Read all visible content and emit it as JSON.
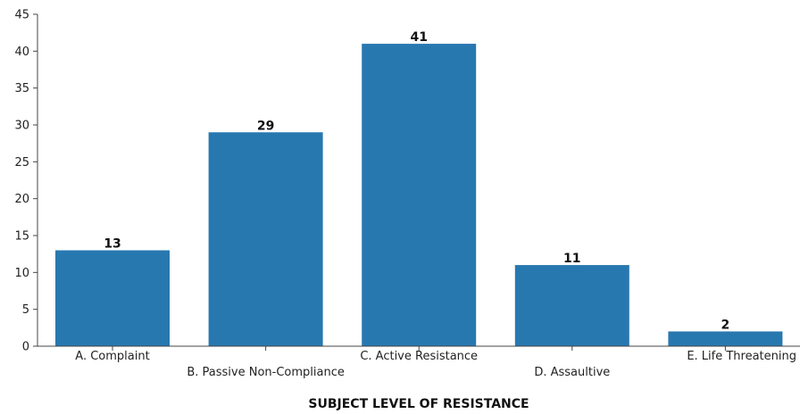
{
  "chart_data": {
    "type": "bar",
    "title": "",
    "xlabel": "SUBJECT LEVEL OF RESISTANCE",
    "ylabel": "",
    "categories": [
      "A. Complaint",
      "B. Passive Non-Compliance",
      "C. Active Resistance",
      "D. Assaultive",
      "E. Life Threatening"
    ],
    "values": [
      13,
      29,
      41,
      11,
      2
    ],
    "ylim": [
      0,
      45
    ],
    "yticks": [
      0,
      5,
      10,
      15,
      20,
      25,
      30,
      35,
      40,
      45
    ],
    "grid": false,
    "legend": "none",
    "colors": {
      "bar": "#2878b0",
      "axis": "#444444"
    }
  }
}
